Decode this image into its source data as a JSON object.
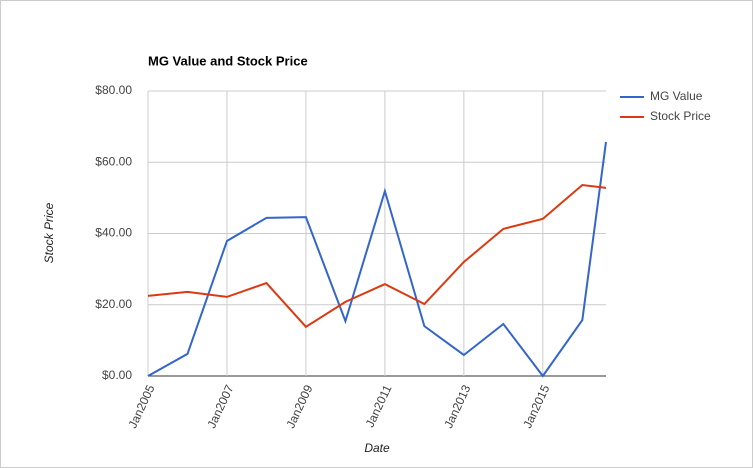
{
  "chart_data": {
    "type": "line",
    "title": "MG Value and Stock Price",
    "x_label": "Date",
    "y_label": "Stock Price",
    "x": [
      2005,
      2006,
      2007,
      2008,
      2009,
      2010,
      2011,
      2012,
      2013,
      2014,
      2015,
      2016,
      2016.6
    ],
    "xlim": [
      2005,
      2016.6
    ],
    "xticks": [
      {
        "value": 2005,
        "label": "Jan2005"
      },
      {
        "value": 2007,
        "label": "Jan2007"
      },
      {
        "value": 2009,
        "label": "Jan2009"
      },
      {
        "value": 2011,
        "label": "Jan2011"
      },
      {
        "value": 2013,
        "label": "Jan2013"
      },
      {
        "value": 2015,
        "label": "Jan2015"
      }
    ],
    "ylim": [
      0,
      80
    ],
    "yticks": [
      {
        "value": 0,
        "label": "$0.00"
      },
      {
        "value": 20,
        "label": "$20.00"
      },
      {
        "value": 40,
        "label": "$40.00"
      },
      {
        "value": 60,
        "label": "$60.00"
      },
      {
        "value": 80,
        "label": "$80.00"
      }
    ],
    "grid": true,
    "legend": "right",
    "series": [
      {
        "name": "MG Value",
        "color": "#3366cc",
        "values": [
          0,
          6.2,
          37.9,
          44.4,
          44.6,
          15.4,
          51.9,
          14.0,
          5.9,
          14.6,
          0,
          15.7,
          65.7
        ]
      },
      {
        "name": "Stock Price",
        "color": "#dc3912",
        "values": [
          22.5,
          23.6,
          22.2,
          26.1,
          13.8,
          20.8,
          25.8,
          20.2,
          32.0,
          41.3,
          44.1,
          53.6,
          52.8
        ]
      }
    ]
  }
}
